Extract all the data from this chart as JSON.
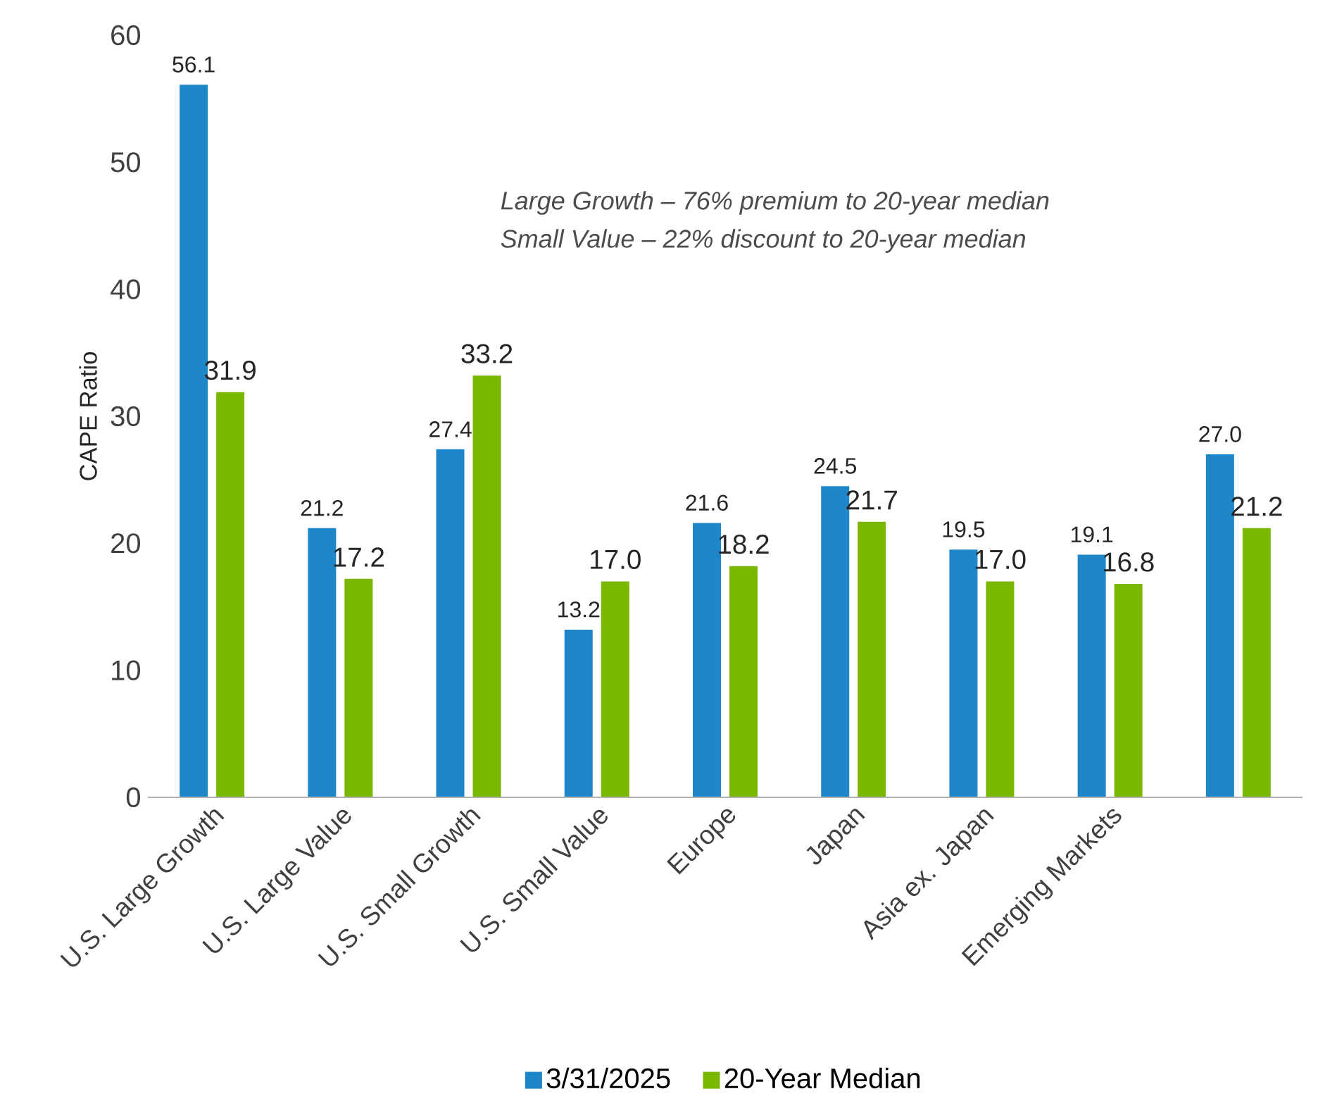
{
  "chart_data": {
    "type": "bar",
    "ylabel": "CAPE Ratio",
    "categories": [
      "U.S. Large Growth",
      "U.S. Large Value",
      "U.S. Small Growth",
      "U.S. Small Value",
      "Europe",
      "Japan",
      "Asia ex. Japan",
      "Emerging Markets",
      null
    ],
    "series": [
      {
        "name": "3/31/2025",
        "color": "#1e87c9",
        "values": [
          56.1,
          21.2,
          27.4,
          13.2,
          21.6,
          24.5,
          19.5,
          19.1,
          27.0
        ],
        "value_labels": [
          "56.1",
          "21.2",
          "27.4",
          "13.2",
          "21.6",
          "24.5",
          "19.5",
          "19.1",
          "27.0"
        ]
      },
      {
        "name": "20-Year Median",
        "color": "#7ab800",
        "values": [
          31.9,
          17.2,
          33.2,
          17.0,
          18.2,
          21.7,
          17.0,
          16.8,
          21.2
        ],
        "value_labels": [
          "31.9",
          "17.2",
          "33.2",
          "17.0",
          "18.2",
          "21.7",
          "17.0",
          "16.8",
          "21.2"
        ]
      }
    ],
    "ylim": [
      0,
      60
    ],
    "yticks": [
      0,
      10,
      20,
      30,
      40,
      50,
      60
    ],
    "grid": false,
    "legend": "bottom",
    "annotations": [
      "Large Growth – 76% premium to 20-year median",
      "Small Value – 22% discount to 20-year median"
    ]
  }
}
